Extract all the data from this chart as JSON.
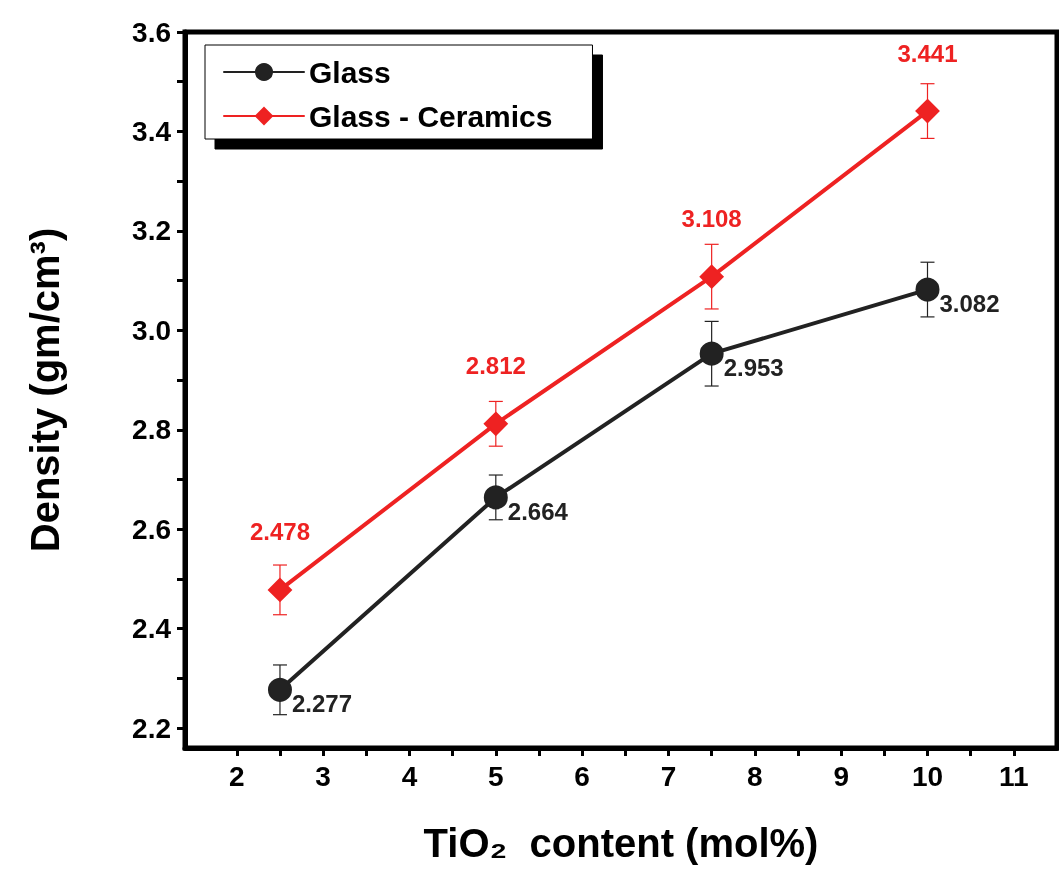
{
  "chart_data": {
    "type": "line",
    "xlabel": "TiO₂  content (mol%)",
    "ylabel": "Density (gm/cm³)",
    "x": [
      2.5,
      5,
      7.5,
      10
    ],
    "series": [
      {
        "name": "Glass",
        "color": "#222222",
        "marker": "circle",
        "values": [
          2.277,
          2.664,
          2.953,
          3.082
        ],
        "errors": [
          0.05,
          0.045,
          0.065,
          0.055
        ]
      },
      {
        "name": "Glass - Ceramics",
        "color": "#ee2222",
        "marker": "diamond",
        "values": [
          2.478,
          2.812,
          3.108,
          3.441
        ],
        "errors": [
          0.05,
          0.045,
          0.065,
          0.055
        ]
      }
    ],
    "data_labels": true,
    "legend": "top left",
    "grid": false,
    "line_style": "solid",
    "xlim": [
      1.4,
      11.5
    ],
    "xticks": [
      2,
      {
        "value": 2.5,
        "label": null
      },
      3,
      {
        "value": 3.5,
        "label": null
      },
      4,
      {
        "value": 4.5,
        "label": null
      },
      5,
      {
        "value": 5.5,
        "label": null
      },
      6,
      {
        "value": 6.5,
        "label": null
      },
      7,
      {
        "value": 7.5,
        "label": null
      },
      8,
      {
        "value": 8.5,
        "label": null
      },
      9,
      {
        "value": 9.5,
        "label": null
      },
      10,
      {
        "value": 10.5,
        "label": null
      },
      11
    ],
    "ylim": [
      2.16,
      3.6
    ],
    "yticks": [
      2.2,
      {
        "value": 2.3,
        "label": null
      },
      2.4,
      {
        "value": 2.5,
        "label": null
      },
      2.6,
      {
        "value": 2.7,
        "label": null
      },
      2.8,
      {
        "value": 2.9,
        "label": null
      },
      {
        "value": 3,
        "label": "3.0"
      },
      {
        "value": 3.1,
        "label": null
      },
      3.2,
      {
        "value": 3.3,
        "label": null
      },
      3.4,
      {
        "value": 3.5,
        "label": null
      },
      3.6
    ]
  }
}
